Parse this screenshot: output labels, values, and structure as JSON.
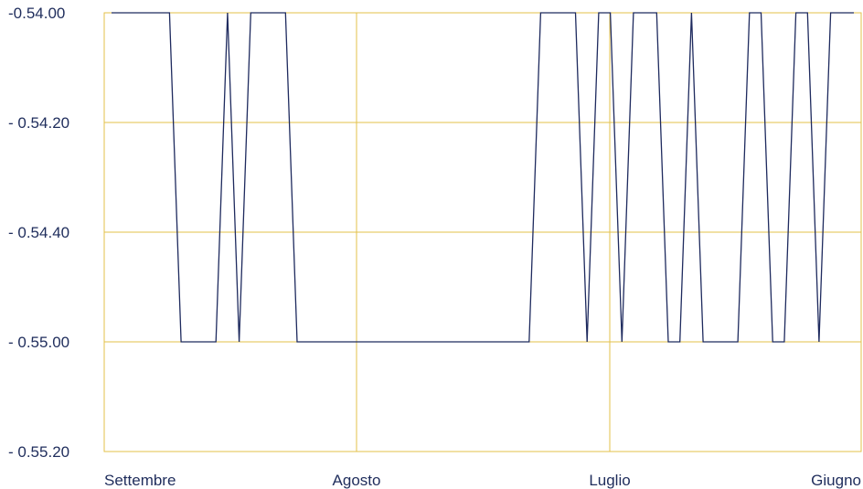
{
  "chart_data": {
    "type": "line",
    "title": "",
    "xlabel": "",
    "ylabel": "",
    "y_tick_labels": [
      "-0.54.00",
      "- 0.54.20",
      "- 0.54.40",
      "- 0.55.00",
      "- 0.55.20"
    ],
    "x_tick_labels": [
      "Settembre",
      "Agosto",
      "Luglio",
      "Giugno"
    ],
    "grid": true,
    "legend": "none",
    "series": [
      {
        "values": [
          0,
          0,
          0,
          0,
          0,
          0,
          -1,
          -1,
          -1,
          -1,
          0,
          -1,
          0,
          0,
          0,
          0,
          -1,
          -1,
          -1,
          -1,
          -1,
          -1,
          -1,
          -1,
          -1,
          -1,
          -1,
          -1,
          -1,
          -1,
          -1,
          -1,
          -1,
          -1,
          -1,
          -1,
          -1,
          0,
          0,
          0,
          0,
          -1,
          0,
          0,
          -1,
          0,
          0,
          0,
          -1,
          -1,
          0,
          -1,
          -1,
          -1,
          -1,
          0,
          0,
          -1,
          -1,
          0,
          0,
          -1,
          0,
          0,
          0
        ]
      }
    ],
    "colors": {
      "line": "#1e2a5e",
      "grid": "#e3c04a",
      "text": "#1f2d5c"
    }
  }
}
